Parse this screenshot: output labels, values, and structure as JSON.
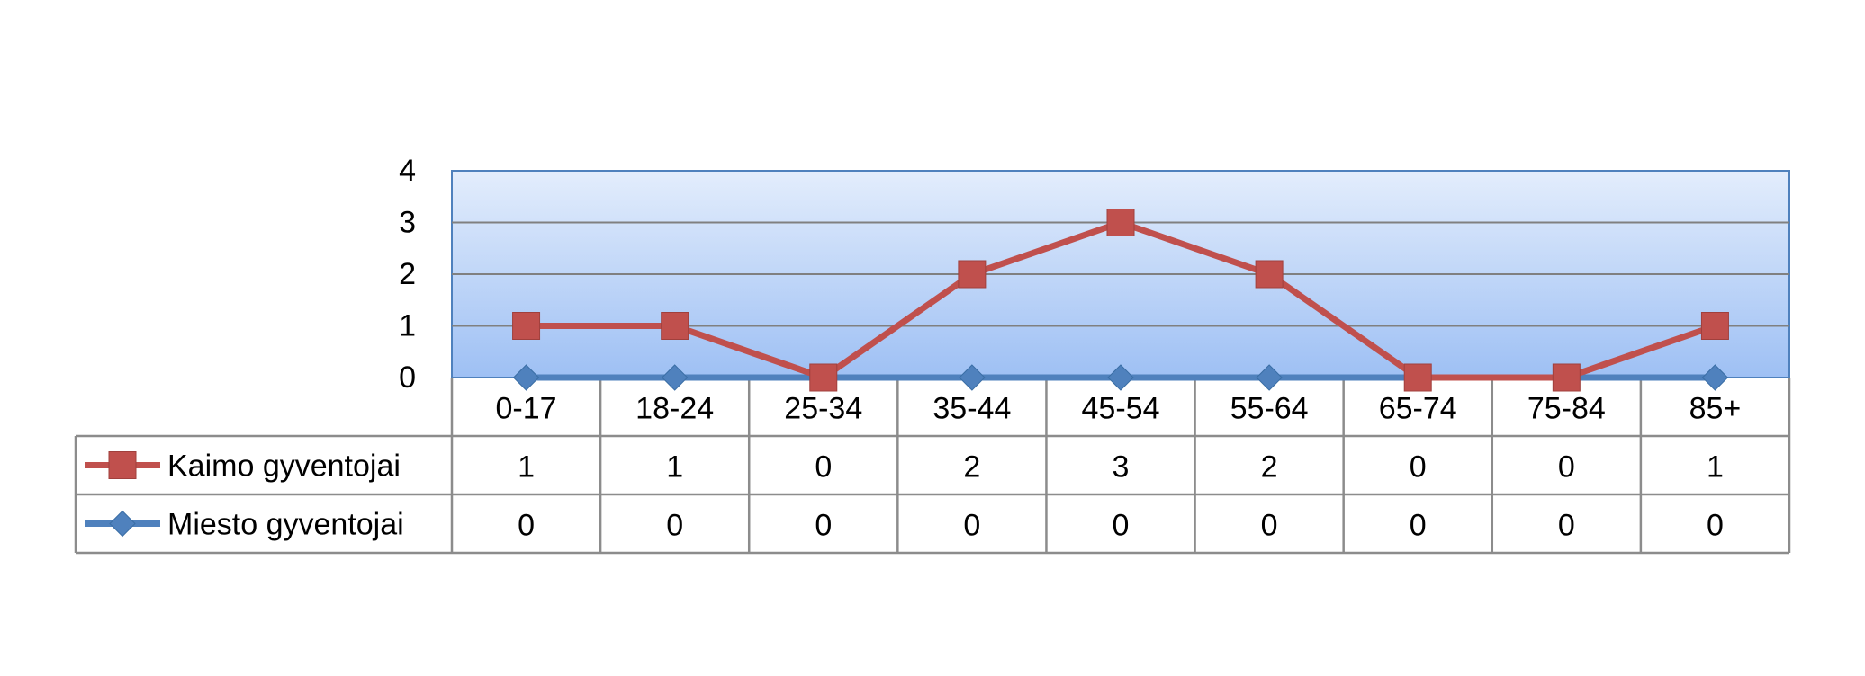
{
  "chart_data": {
    "type": "line",
    "categories": [
      "0-17",
      "18-24",
      "25-34",
      "35-44",
      "45-54",
      "55-64",
      "65-74",
      "75-84",
      "85+"
    ],
    "series": [
      {
        "name": "Kaimo gyventojai",
        "values": [
          1,
          1,
          0,
          2,
          3,
          2,
          0,
          0,
          1
        ],
        "color": "#C0504D",
        "marker": "square"
      },
      {
        "name": "Miesto gyventojai",
        "values": [
          0,
          0,
          0,
          0,
          0,
          0,
          0,
          0,
          0
        ],
        "color": "#4F81BD",
        "marker": "diamond"
      }
    ],
    "ylim": [
      0,
      4
    ],
    "yticks": [
      "0",
      "1",
      "2",
      "3",
      "4"
    ],
    "grid": true,
    "legend": "data table",
    "plot_background": "light blue gradient"
  }
}
